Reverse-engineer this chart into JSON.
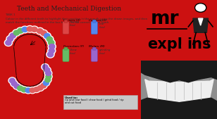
{
  "bg_color": "#cc1111",
  "left_panel_bg": "#f5f5f5",
  "title": "Teeth and Mechanical Digestion",
  "title_fontsize": 6.5,
  "task_text": "TASK 1\nColour in the different teeth to highlight their position in the mouth using the drawn images, and then\nmatch the functions outlined in the box below, to the correct type of tooth.",
  "task_fontsize": 2.8,
  "tooth_colors": {
    "incisors": "#e06060",
    "canines": "#5588ee",
    "premolars": "#66bb66",
    "molars": "#9966cc"
  },
  "logo_bg": "#ffffff",
  "photo_bg": "#888888",
  "red_border": 6
}
